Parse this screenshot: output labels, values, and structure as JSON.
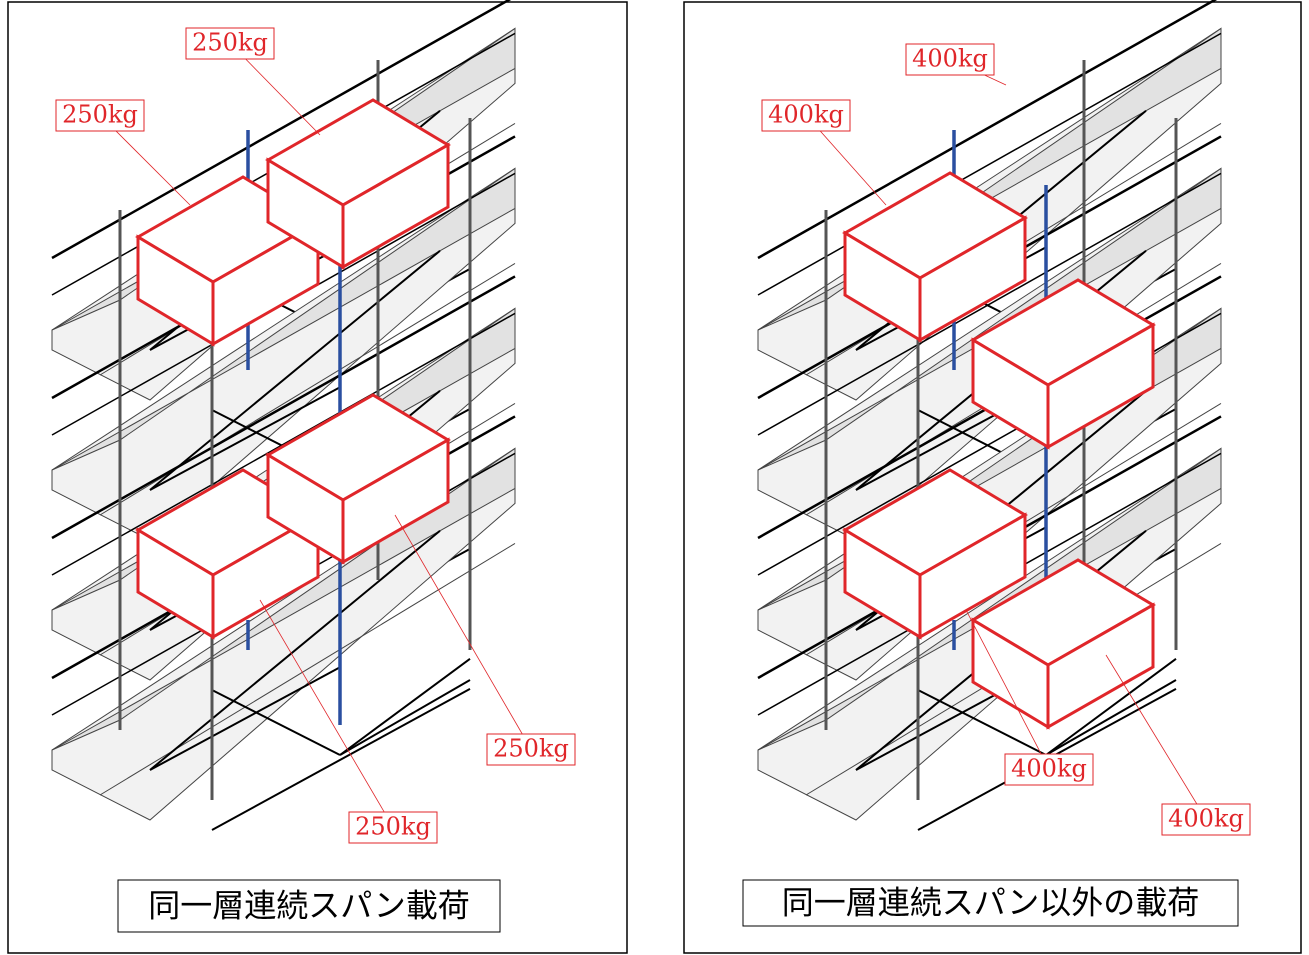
{
  "panels": [
    {
      "caption": "同一層連続スパン載荷",
      "labels": [
        "250kg",
        "250kg",
        "250kg",
        "250kg"
      ]
    },
    {
      "caption": "同一層連続スパン以外の載荷",
      "labels": [
        "400kg",
        "400kg",
        "400kg",
        "400kg"
      ]
    }
  ]
}
